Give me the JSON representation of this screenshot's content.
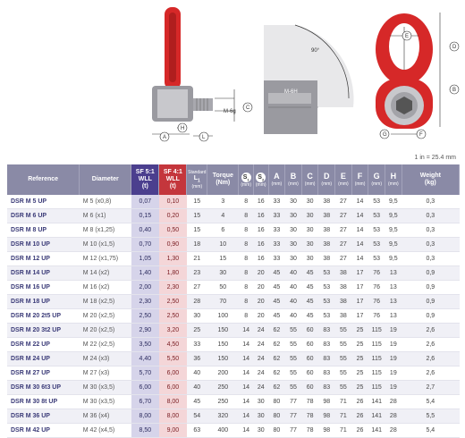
{
  "drawings": {
    "side_labels": [
      "A",
      "H",
      "L",
      "C"
    ],
    "thread_label": "M-6g",
    "angle_label": "90°",
    "section_label": "M-6H",
    "front_labels": [
      "E",
      "D",
      "B",
      "G",
      "F"
    ]
  },
  "unit_note": "1 in = 25.4 mm",
  "headers": {
    "reference": "Reference",
    "diameter": "Diameter",
    "sf5": "SF 5:1",
    "sf4": "SF 4:1",
    "wll": "WLL",
    "t": "(t)",
    "standard": "Standard",
    "l1": "L",
    "l1_sub": "1",
    "mm": "(mm)",
    "torque": "Torque",
    "nm": "(Nm)",
    "s1": "S",
    "s2": "S",
    "a": "A",
    "b": "B",
    "c": "C",
    "d": "D",
    "e": "E",
    "f": "F",
    "g": "G",
    "h": "H",
    "weight": "Weight",
    "kg": "(kg)"
  },
  "rows": [
    {
      "ref": "DSR M 5 UP",
      "dia": "M 5 (x0,8)",
      "sf5": "0,07",
      "sf4": "0,10",
      "l1": "15",
      "torque": "3",
      "s1": "8",
      "s2": "16",
      "a": "33",
      "b": "30",
      "c": "30",
      "d": "38",
      "e": "27",
      "f": "14",
      "g": "53",
      "h": "9,5",
      "w": "0,3"
    },
    {
      "ref": "DSR M 6 UP",
      "dia": "M 6 (x1)",
      "sf5": "0,15",
      "sf4": "0,20",
      "l1": "15",
      "torque": "4",
      "s1": "8",
      "s2": "16",
      "a": "33",
      "b": "30",
      "c": "30",
      "d": "38",
      "e": "27",
      "f": "14",
      "g": "53",
      "h": "9,5",
      "w": "0,3"
    },
    {
      "ref": "DSR M 8 UP",
      "dia": "M 8 (x1,25)",
      "sf5": "0,40",
      "sf4": "0,50",
      "l1": "15",
      "torque": "6",
      "s1": "8",
      "s2": "16",
      "a": "33",
      "b": "30",
      "c": "30",
      "d": "38",
      "e": "27",
      "f": "14",
      "g": "53",
      "h": "9,5",
      "w": "0,3"
    },
    {
      "ref": "DSR M 10 UP",
      "dia": "M 10 (x1,5)",
      "sf5": "0,70",
      "sf4": "0,90",
      "l1": "18",
      "torque": "10",
      "s1": "8",
      "s2": "16",
      "a": "33",
      "b": "30",
      "c": "30",
      "d": "38",
      "e": "27",
      "f": "14",
      "g": "53",
      "h": "9,5",
      "w": "0,3"
    },
    {
      "ref": "DSR M 12 UP",
      "dia": "M 12 (x1,75)",
      "sf5": "1,05",
      "sf4": "1,30",
      "l1": "21",
      "torque": "15",
      "s1": "8",
      "s2": "16",
      "a": "33",
      "b": "30",
      "c": "30",
      "d": "38",
      "e": "27",
      "f": "14",
      "g": "53",
      "h": "9,5",
      "w": "0,3"
    },
    {
      "ref": "DSR M 14 UP",
      "dia": "M 14 (x2)",
      "sf5": "1,40",
      "sf4": "1,80",
      "l1": "23",
      "torque": "30",
      "s1": "8",
      "s2": "20",
      "a": "45",
      "b": "40",
      "c": "45",
      "d": "53",
      "e": "38",
      "f": "17",
      "g": "76",
      "h": "13",
      "w": "0,9"
    },
    {
      "ref": "DSR M 16 UP",
      "dia": "M 16 (x2)",
      "sf5": "2,00",
      "sf4": "2,30",
      "l1": "27",
      "torque": "50",
      "s1": "8",
      "s2": "20",
      "a": "45",
      "b": "40",
      "c": "45",
      "d": "53",
      "e": "38",
      "f": "17",
      "g": "76",
      "h": "13",
      "w": "0,9"
    },
    {
      "ref": "DSR M 18 UP",
      "dia": "M 18 (x2,5)",
      "sf5": "2,30",
      "sf4": "2,50",
      "l1": "28",
      "torque": "70",
      "s1": "8",
      "s2": "20",
      "a": "45",
      "b": "40",
      "c": "45",
      "d": "53",
      "e": "38",
      "f": "17",
      "g": "76",
      "h": "13",
      "w": "0,9"
    },
    {
      "ref": "DSR M 20 2t5 UP",
      "dia": "M 20 (x2,5)",
      "sf5": "2,50",
      "sf4": "2,50",
      "l1": "30",
      "torque": "100",
      "s1": "8",
      "s2": "20",
      "a": "45",
      "b": "40",
      "c": "45",
      "d": "53",
      "e": "38",
      "f": "17",
      "g": "76",
      "h": "13",
      "w": "0,9"
    },
    {
      "ref": "DSR M 20 3t2 UP",
      "dia": "M 20 (x2,5)",
      "sf5": "2,90",
      "sf4": "3,20",
      "l1": "25",
      "torque": "150",
      "s1": "14",
      "s2": "24",
      "a": "62",
      "b": "55",
      "c": "60",
      "d": "83",
      "e": "55",
      "f": "25",
      "g": "115",
      "h": "19",
      "w": "2,6"
    },
    {
      "ref": "DSR M 22 UP",
      "dia": "M 22 (x2,5)",
      "sf5": "3,50",
      "sf4": "4,50",
      "l1": "33",
      "torque": "150",
      "s1": "14",
      "s2": "24",
      "a": "62",
      "b": "55",
      "c": "60",
      "d": "83",
      "e": "55",
      "f": "25",
      "g": "115",
      "h": "19",
      "w": "2,6"
    },
    {
      "ref": "DSR M 24 UP",
      "dia": "M 24 (x3)",
      "sf5": "4,40",
      "sf4": "5,50",
      "l1": "36",
      "torque": "150",
      "s1": "14",
      "s2": "24",
      "a": "62",
      "b": "55",
      "c": "60",
      "d": "83",
      "e": "55",
      "f": "25",
      "g": "115",
      "h": "19",
      "w": "2,6"
    },
    {
      "ref": "DSR M 27 UP",
      "dia": "M 27 (x3)",
      "sf5": "5,70",
      "sf4": "6,00",
      "l1": "40",
      "torque": "200",
      "s1": "14",
      "s2": "24",
      "a": "62",
      "b": "55",
      "c": "60",
      "d": "83",
      "e": "55",
      "f": "25",
      "g": "115",
      "h": "19",
      "w": "2,6"
    },
    {
      "ref": "DSR M 30 6t3 UP",
      "dia": "M 30 (x3,5)",
      "sf5": "6,00",
      "sf4": "6,00",
      "l1": "40",
      "torque": "250",
      "s1": "14",
      "s2": "24",
      "a": "62",
      "b": "55",
      "c": "60",
      "d": "83",
      "e": "55",
      "f": "25",
      "g": "115",
      "h": "19",
      "w": "2,7"
    },
    {
      "ref": "DSR M 30 8t UP",
      "dia": "M 30 (x3,5)",
      "sf5": "6,70",
      "sf4": "8,00",
      "l1": "45",
      "torque": "250",
      "s1": "14",
      "s2": "30",
      "a": "80",
      "b": "77",
      "c": "78",
      "d": "98",
      "e": "71",
      "f": "26",
      "g": "141",
      "h": "28",
      "w": "5,4"
    },
    {
      "ref": "DSR M 36 UP",
      "dia": "M 36 (x4)",
      "sf5": "8,00",
      "sf4": "8,00",
      "l1": "54",
      "torque": "320",
      "s1": "14",
      "s2": "30",
      "a": "80",
      "b": "77",
      "c": "78",
      "d": "98",
      "e": "71",
      "f": "26",
      "g": "141",
      "h": "28",
      "w": "5,5"
    },
    {
      "ref": "DSR M 42 UP",
      "dia": "M 42 (x4,5)",
      "sf5": "8,50",
      "sf4": "9,00",
      "l1": "63",
      "torque": "400",
      "s1": "14",
      "s2": "30",
      "a": "80",
      "b": "77",
      "c": "78",
      "d": "98",
      "e": "71",
      "f": "26",
      "g": "141",
      "h": "28",
      "w": "5,4"
    }
  ],
  "colors": {
    "header": "#8a8aa6",
    "sf5_header": "#4b3f8e",
    "sf4_header": "#c4363c",
    "sf5_cell": "#d6d4ea",
    "sf4_cell": "#f4d6d8",
    "product_red": "#d62828"
  }
}
